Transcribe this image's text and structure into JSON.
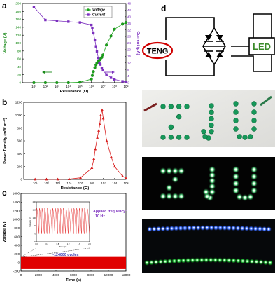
{
  "panels": {
    "a": "a",
    "b": "b",
    "c": "c",
    "d": "d"
  },
  "chart_data": [
    {
      "panel": "a",
      "type": "line",
      "xlabel": "Resistance (Ω)",
      "ylabel": "Voltage (V)",
      "y2label": "Current (μA)",
      "xscale": "log",
      "xlim": [
        1,
        1000000000
      ],
      "ylim": [
        0,
        200
      ],
      "y2lim": [
        0,
        48
      ],
      "xticks": [
        "10¹",
        "10²",
        "10³",
        "10⁴",
        "10⁵",
        "10⁶",
        "10⁷",
        "10⁸",
        "10⁹"
      ],
      "yticks": [
        "0",
        "20",
        "40",
        "60",
        "80",
        "100",
        "120",
        "140",
        "160",
        "180",
        "200"
      ],
      "y2ticks": [
        "0",
        "4",
        "8",
        "12",
        "16",
        "20",
        "24",
        "28",
        "32",
        "36",
        "40",
        "44",
        "48"
      ],
      "legend_position": "top-right",
      "series": [
        {
          "name": "Voltage",
          "axis": "left",
          "color": "#1aa51a",
          "x": [
            10,
            100,
            1000,
            10000,
            100000,
            1000000,
            1200000,
            1500000,
            2000000,
            2500000,
            3000000,
            4000000,
            5000000,
            6000000,
            8000000,
            10000000,
            20000000,
            50000000,
            100000000,
            500000000,
            1000000000
          ],
          "y": [
            0,
            0,
            0,
            0,
            1,
            9,
            18,
            28,
            38,
            45,
            50,
            54,
            57,
            60,
            64,
            70,
            95,
            118,
            135,
            148,
            152
          ]
        },
        {
          "name": "Current",
          "axis": "right",
          "color": "#7b2fbe",
          "x": [
            10,
            100,
            1000,
            10000,
            100000,
            1000000,
            1200000,
            1500000,
            2000000,
            2500000,
            3000000,
            4000000,
            5000000,
            6000000,
            8000000,
            10000000,
            20000000,
            50000000,
            100000000,
            500000000,
            1000000000
          ],
          "y": [
            46,
            38,
            37.5,
            37,
            36.5,
            35,
            33,
            30,
            26,
            22,
            19,
            15,
            12,
            11,
            9,
            7.5,
            5,
            3,
            2,
            0.8,
            0.5
          ]
        }
      ],
      "annotations": [
        "left-arrow-voltage",
        "right-arrow-current"
      ]
    },
    {
      "panel": "b",
      "type": "line",
      "xlabel": "Resistance (Ω)",
      "ylabel": "Power Density (mW m⁻²)",
      "xscale": "log",
      "xlim": [
        1,
        1000000000
      ],
      "ylim": [
        0,
        1200
      ],
      "xticks": [
        "10¹",
        "10²",
        "10³",
        "10⁴",
        "10⁵",
        "10⁶",
        "10⁷",
        "10⁸",
        "10⁹"
      ],
      "yticks": [
        "0",
        "200",
        "400",
        "600",
        "800",
        "1000",
        "1200"
      ],
      "series": [
        {
          "name": "",
          "color": "#d81f1f",
          "x": [
            10,
            100,
            1000,
            10000,
            100000,
            1000000,
            1500000,
            2000000,
            3000000,
            4000000,
            5000000,
            6000000,
            8000000,
            10000000,
            20000000,
            50000000,
            100000000,
            500000000,
            1000000000
          ],
          "y": [
            2,
            2,
            2,
            5,
            25,
            180,
            320,
            470,
            650,
            760,
            860,
            1000,
            1080,
            950,
            600,
            350,
            200,
            50,
            20
          ]
        }
      ]
    },
    {
      "panel": "c",
      "type": "area",
      "xlabel": "Time (s)",
      "ylabel": "Voltage (V)",
      "xlim": [
        0,
        12000
      ],
      "ylim": [
        -200,
        1600
      ],
      "xticks": [
        "0",
        "2000",
        "4000",
        "6000",
        "8000",
        "10000",
        "12000"
      ],
      "yticks": [
        "-200",
        "0",
        "200",
        "400",
        "600",
        "800",
        "1000",
        "1200",
        "1400",
        "1600"
      ],
      "band": {
        "from": 0,
        "to": 12000,
        "ymin": -150,
        "ymax": 130,
        "color": "#e00000"
      },
      "inset": {
        "xlabel": "Time (s)",
        "ylabel": "Voltage (V)",
        "xlim": [
          0,
          2.0
        ],
        "ylim": [
          -50,
          200
        ],
        "xticks": [
          "0.0",
          "0.4",
          "0.8",
          "1.2",
          "1.6",
          "2.0"
        ],
        "yticks": [
          "-50",
          "0",
          "50",
          "100",
          "150",
          "200"
        ],
        "frequency_hz": 10,
        "peaks": 20
      },
      "annotations": {
        "freq_label": "Applied frequency: 10 Hz",
        "cycles_label": "~124000 cycles"
      }
    }
  ],
  "circuit": {
    "teng_label": "TENG",
    "led_label": "LED"
  },
  "photos": [
    {
      "name": "zju-daylight",
      "caption": ""
    },
    {
      "name": "zju-dark",
      "caption": ""
    },
    {
      "name": "led-strip-dark",
      "caption": ""
    }
  ]
}
